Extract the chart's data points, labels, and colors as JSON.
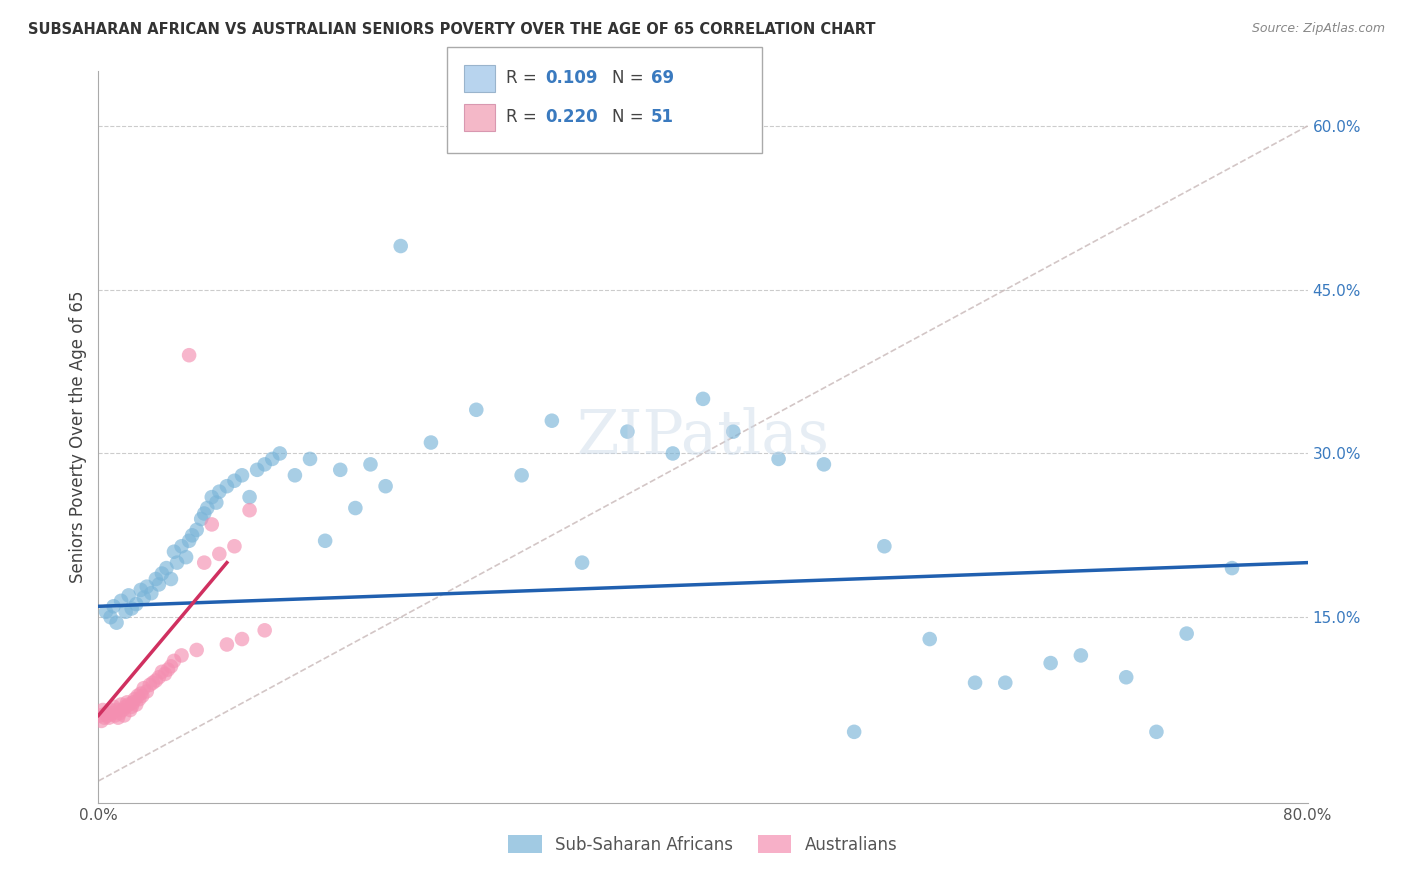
{
  "title": "SUBSAHARAN AFRICAN VS AUSTRALIAN SENIORS POVERTY OVER THE AGE OF 65 CORRELATION CHART",
  "source": "Source: ZipAtlas.com",
  "ylabel": "Seniors Poverty Over the Age of 65",
  "xlim": [
    0.0,
    0.8
  ],
  "ylim": [
    -0.02,
    0.65
  ],
  "ytick_labels_right": [
    "60.0%",
    "45.0%",
    "30.0%",
    "15.0%"
  ],
  "ytick_positions_right": [
    0.6,
    0.45,
    0.3,
    0.15
  ],
  "grid_yticks": [
    0.6,
    0.45,
    0.3,
    0.15
  ],
  "legend_color1": "#b8d4ee",
  "legend_color2": "#f4b8c8",
  "blue_color": "#7ab4d8",
  "pink_color": "#f48fb1",
  "blue_line_color": "#2060b0",
  "pink_line_color": "#d03060",
  "trend_line_color": "#c8b8b8",
  "sub_saharan_x": [
    0.005,
    0.008,
    0.01,
    0.012,
    0.015,
    0.018,
    0.02,
    0.022,
    0.025,
    0.028,
    0.03,
    0.032,
    0.035,
    0.038,
    0.04,
    0.042,
    0.045,
    0.048,
    0.05,
    0.052,
    0.055,
    0.058,
    0.06,
    0.062,
    0.065,
    0.068,
    0.07,
    0.072,
    0.075,
    0.078,
    0.08,
    0.085,
    0.09,
    0.095,
    0.1,
    0.105,
    0.11,
    0.115,
    0.12,
    0.13,
    0.14,
    0.15,
    0.16,
    0.17,
    0.18,
    0.19,
    0.2,
    0.22,
    0.25,
    0.28,
    0.3,
    0.32,
    0.35,
    0.38,
    0.4,
    0.42,
    0.45,
    0.48,
    0.5,
    0.52,
    0.55,
    0.58,
    0.6,
    0.63,
    0.65,
    0.68,
    0.7,
    0.72,
    0.75
  ],
  "sub_saharan_y": [
    0.155,
    0.15,
    0.16,
    0.145,
    0.165,
    0.155,
    0.17,
    0.158,
    0.162,
    0.175,
    0.168,
    0.178,
    0.172,
    0.185,
    0.18,
    0.19,
    0.195,
    0.185,
    0.21,
    0.2,
    0.215,
    0.205,
    0.22,
    0.225,
    0.23,
    0.24,
    0.245,
    0.25,
    0.26,
    0.255,
    0.265,
    0.27,
    0.275,
    0.28,
    0.26,
    0.285,
    0.29,
    0.295,
    0.3,
    0.28,
    0.295,
    0.22,
    0.285,
    0.25,
    0.29,
    0.27,
    0.49,
    0.31,
    0.34,
    0.28,
    0.33,
    0.2,
    0.32,
    0.3,
    0.35,
    0.32,
    0.295,
    0.29,
    0.045,
    0.215,
    0.13,
    0.09,
    0.09,
    0.108,
    0.115,
    0.095,
    0.045,
    0.135,
    0.195
  ],
  "australians_x": [
    0.001,
    0.002,
    0.003,
    0.004,
    0.005,
    0.006,
    0.007,
    0.008,
    0.009,
    0.01,
    0.011,
    0.012,
    0.013,
    0.014,
    0.015,
    0.016,
    0.017,
    0.018,
    0.019,
    0.02,
    0.021,
    0.022,
    0.023,
    0.024,
    0.025,
    0.026,
    0.027,
    0.028,
    0.029,
    0.03,
    0.032,
    0.034,
    0.036,
    0.038,
    0.04,
    0.042,
    0.044,
    0.046,
    0.048,
    0.05,
    0.055,
    0.06,
    0.065,
    0.07,
    0.075,
    0.08,
    0.085,
    0.09,
    0.095,
    0.1,
    0.11
  ],
  "australians_y": [
    0.06,
    0.055,
    0.065,
    0.058,
    0.062,
    0.06,
    0.058,
    0.065,
    0.062,
    0.068,
    0.06,
    0.065,
    0.058,
    0.062,
    0.07,
    0.065,
    0.06,
    0.068,
    0.072,
    0.07,
    0.065,
    0.068,
    0.072,
    0.075,
    0.07,
    0.078,
    0.075,
    0.08,
    0.078,
    0.085,
    0.082,
    0.088,
    0.09,
    0.092,
    0.095,
    0.1,
    0.098,
    0.102,
    0.105,
    0.11,
    0.115,
    0.39,
    0.12,
    0.2,
    0.235,
    0.208,
    0.125,
    0.215,
    0.13,
    0.248,
    0.138
  ],
  "blue_line_x": [
    0.0,
    0.8
  ],
  "blue_line_y": [
    0.16,
    0.2
  ],
  "pink_line_x": [
    0.0,
    0.085
  ],
  "pink_line_y": [
    0.06,
    0.2
  ],
  "trend_x": [
    0.0,
    0.8
  ],
  "trend_y": [
    0.0,
    0.6
  ]
}
